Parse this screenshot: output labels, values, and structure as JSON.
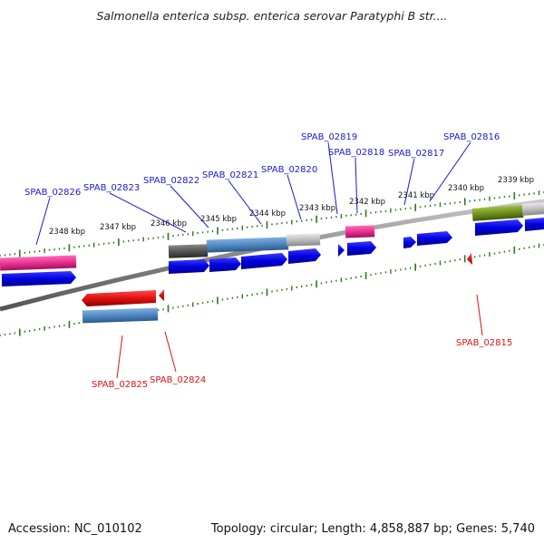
{
  "title": "Salmonella enterica subsp. enterica serovar Paratyphi B str....",
  "footer": {
    "accession": "Accession: NC_010102",
    "topology": "Topology: circular; Length: 4,858,887 bp; Genes: 5,740"
  },
  "ruler_labels": [
    "2348 kbp",
    "2347 kbp",
    "2346 kbp",
    "2345 kbp",
    "2344 kbp",
    "2343 kbp",
    "2342 kbp",
    "2341 kbp",
    "2340 kbp",
    "2339 kbp"
  ],
  "genes_top": [
    "SPAB_02826",
    "SPAB_02823",
    "SPAB_02822",
    "SPAB_02821",
    "SPAB_02820",
    "SPAB_02819",
    "SPAB_02818",
    "SPAB_02817",
    "SPAB_02816"
  ],
  "genes_bottom": [
    "SPAB_02825",
    "SPAB_02824",
    "SPAB_02815"
  ],
  "colors": {
    "forward_gene": "#0a0ae6",
    "reverse_gene": "#ee1111",
    "top_label": "#1a1acc",
    "bottom_label": "#dd1111",
    "tick": "#2a7a1a",
    "backbone": "#888888",
    "pink_feature": "#e8318f",
    "steelblue_feature": "#4f88c0",
    "olive_feature": "#6f8f1f",
    "gray_feature": "#bdbdbd",
    "darkgray_feature": "#555555"
  }
}
